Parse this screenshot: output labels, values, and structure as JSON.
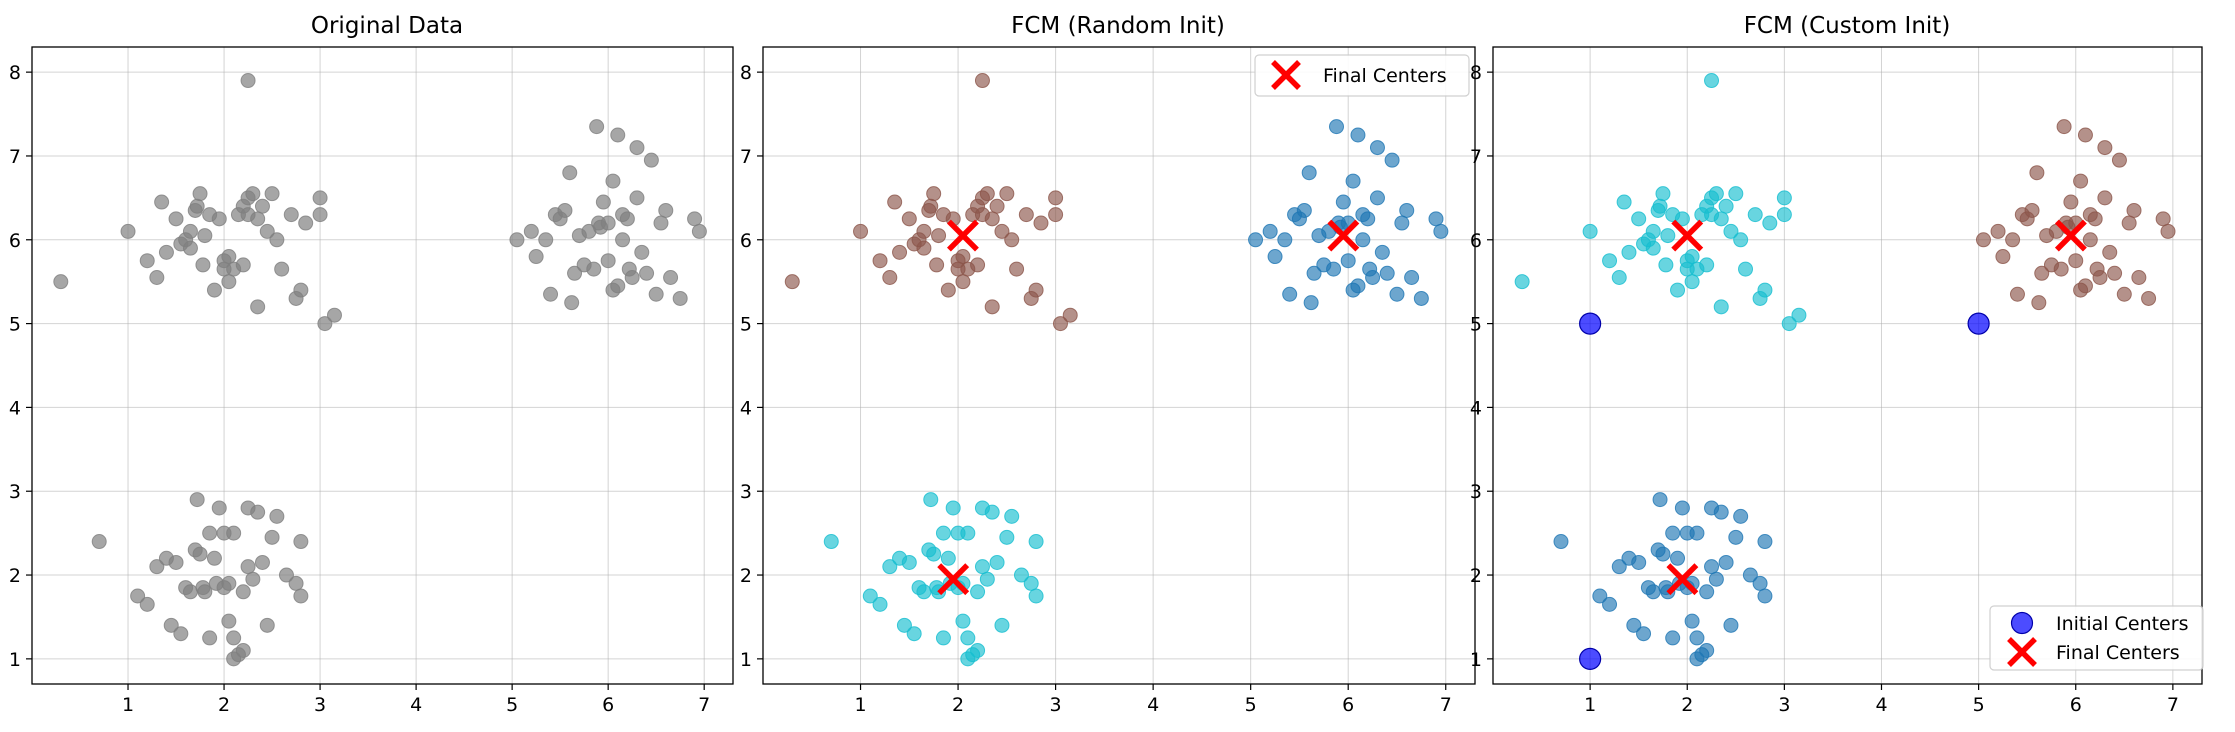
{
  "chart_data": [
    {
      "type": "scatter",
      "title": "Original Data",
      "xlabel": "",
      "ylabel": "",
      "xlim": [
        0.0,
        7.3
      ],
      "ylim": [
        0.7,
        8.3
      ],
      "xticks": [
        1,
        2,
        3,
        4,
        5,
        6,
        7
      ],
      "yticks": [
        1,
        2,
        3,
        4,
        5,
        6,
        7,
        8
      ],
      "grid": true,
      "legend": null,
      "series": [
        {
          "color": "#808080",
          "points": [
            [
              0.3,
              5.5
            ],
            [
              1.0,
              6.1
            ],
            [
              1.2,
              5.75
            ],
            [
              1.3,
              5.55
            ],
            [
              1.35,
              6.45
            ],
            [
              1.4,
              5.85
            ],
            [
              1.5,
              6.25
            ],
            [
              1.55,
              5.95
            ],
            [
              1.6,
              6.0
            ],
            [
              1.65,
              5.9
            ],
            [
              1.65,
              6.1
            ],
            [
              1.7,
              6.35
            ],
            [
              1.72,
              6.4
            ],
            [
              1.75,
              6.55
            ],
            [
              1.8,
              6.05
            ],
            [
              1.78,
              5.7
            ],
            [
              1.85,
              6.3
            ],
            [
              1.9,
              5.4
            ],
            [
              1.95,
              6.25
            ],
            [
              2.0,
              5.75
            ],
            [
              2.0,
              5.65
            ],
            [
              2.05,
              5.5
            ],
            [
              2.05,
              5.8
            ],
            [
              2.1,
              5.65
            ],
            [
              2.15,
              6.3
            ],
            [
              2.2,
              5.7
            ],
            [
              2.2,
              6.4
            ],
            [
              2.25,
              6.5
            ],
            [
              2.25,
              6.3
            ],
            [
              2.3,
              6.55
            ],
            [
              2.35,
              5.2
            ],
            [
              2.35,
              6.25
            ],
            [
              2.4,
              6.4
            ],
            [
              2.45,
              6.1
            ],
            [
              2.5,
              6.55
            ],
            [
              2.55,
              6.0
            ],
            [
              2.6,
              5.65
            ],
            [
              2.7,
              6.3
            ],
            [
              2.75,
              5.3
            ],
            [
              2.8,
              5.4
            ],
            [
              2.85,
              6.2
            ],
            [
              3.0,
              6.5
            ],
            [
              3.0,
              6.3
            ],
            [
              3.05,
              5.0
            ],
            [
              3.15,
              5.1
            ],
            [
              2.25,
              7.9
            ],
            [
              0.7,
              2.4
            ],
            [
              1.1,
              1.75
            ],
            [
              1.2,
              1.65
            ],
            [
              1.3,
              2.1
            ],
            [
              1.4,
              2.2
            ],
            [
              1.45,
              1.4
            ],
            [
              1.5,
              2.15
            ],
            [
              1.55,
              1.3
            ],
            [
              1.6,
              1.85
            ],
            [
              1.65,
              1.8
            ],
            [
              1.7,
              2.3
            ],
            [
              1.72,
              2.9
            ],
            [
              1.75,
              2.25
            ],
            [
              1.78,
              1.85
            ],
            [
              1.8,
              1.8
            ],
            [
              1.85,
              2.5
            ],
            [
              1.85,
              1.25
            ],
            [
              1.9,
              2.2
            ],
            [
              1.92,
              1.9
            ],
            [
              1.95,
              2.8
            ],
            [
              2.0,
              2.5
            ],
            [
              2.0,
              1.85
            ],
            [
              2.05,
              1.45
            ],
            [
              2.05,
              1.9
            ],
            [
              2.1,
              1.25
            ],
            [
              2.1,
              2.5
            ],
            [
              2.1,
              1.0
            ],
            [
              2.15,
              1.05
            ],
            [
              2.2,
              1.8
            ],
            [
              2.2,
              1.1
            ],
            [
              2.25,
              2.1
            ],
            [
              2.25,
              2.8
            ],
            [
              2.3,
              1.95
            ],
            [
              2.35,
              2.75
            ],
            [
              2.4,
              2.15
            ],
            [
              2.45,
              1.4
            ],
            [
              2.5,
              2.45
            ],
            [
              2.55,
              2.7
            ],
            [
              2.65,
              2.0
            ],
            [
              2.75,
              1.9
            ],
            [
              2.8,
              1.75
            ],
            [
              2.8,
              2.4
            ],
            [
              5.05,
              6.0
            ],
            [
              5.2,
              6.1
            ],
            [
              5.25,
              5.8
            ],
            [
              5.35,
              6.0
            ],
            [
              5.4,
              5.35
            ],
            [
              5.45,
              6.3
            ],
            [
              5.5,
              6.25
            ],
            [
              5.55,
              6.35
            ],
            [
              5.6,
              6.8
            ],
            [
              5.62,
              5.25
            ],
            [
              5.65,
              5.6
            ],
            [
              5.7,
              6.05
            ],
            [
              5.75,
              5.7
            ],
            [
              5.8,
              6.1
            ],
            [
              5.85,
              5.65
            ],
            [
              5.88,
              7.35
            ],
            [
              5.9,
              6.2
            ],
            [
              5.92,
              6.15
            ],
            [
              5.95,
              6.45
            ],
            [
              6.0,
              6.2
            ],
            [
              6.0,
              5.75
            ],
            [
              6.05,
              5.4
            ],
            [
              6.05,
              6.7
            ],
            [
              6.1,
              5.45
            ],
            [
              6.1,
              7.25
            ],
            [
              6.15,
              6.0
            ],
            [
              6.15,
              6.3
            ],
            [
              6.2,
              6.25
            ],
            [
              6.22,
              5.65
            ],
            [
              6.25,
              5.55
            ],
            [
              6.3,
              6.5
            ],
            [
              6.3,
              7.1
            ],
            [
              6.35,
              5.85
            ],
            [
              6.4,
              5.6
            ],
            [
              6.45,
              6.95
            ],
            [
              6.5,
              5.35
            ],
            [
              6.55,
              6.2
            ],
            [
              6.6,
              6.35
            ],
            [
              6.65,
              5.55
            ],
            [
              6.75,
              5.3
            ],
            [
              6.9,
              6.25
            ],
            [
              6.95,
              6.1
            ]
          ]
        }
      ]
    },
    {
      "type": "scatter",
      "title": "FCM (Random Init)",
      "xlabel": "",
      "ylabel": "",
      "xlim": [
        0.0,
        7.3
      ],
      "ylim": [
        0.7,
        8.3
      ],
      "xticks": [
        1,
        2,
        3,
        4,
        5,
        6,
        7
      ],
      "yticks": [
        1,
        2,
        3,
        4,
        5,
        6,
        7,
        8
      ],
      "grid": true,
      "legend": {
        "location": "upper right",
        "entries": [
          "Final Centers"
        ]
      },
      "series": [
        {
          "color": "#8c564b",
          "cluster": "top-left"
        },
        {
          "color": "#1f77b4",
          "cluster": "top-right"
        },
        {
          "color": "#17becf",
          "cluster": "bottom-left"
        }
      ],
      "final_centers": [
        [
          2.05,
          6.05
        ],
        [
          5.95,
          6.05
        ],
        [
          1.95,
          1.95
        ]
      ],
      "final_center_color": "#ff0000"
    },
    {
      "type": "scatter",
      "title": "FCM (Custom Init)",
      "xlabel": "",
      "ylabel": "",
      "xlim": [
        0.0,
        7.3
      ],
      "ylim": [
        0.7,
        8.3
      ],
      "xticks": [
        1,
        2,
        3,
        4,
        5,
        6,
        7
      ],
      "yticks": [
        1,
        2,
        3,
        4,
        5,
        6,
        7,
        8
      ],
      "grid": true,
      "legend": {
        "location": "lower right",
        "entries": [
          "Initial Centers",
          "Final Centers"
        ]
      },
      "series": [
        {
          "color": "#17becf",
          "cluster": "top-left"
        },
        {
          "color": "#8c564b",
          "cluster": "top-right"
        },
        {
          "color": "#1f77b4",
          "cluster": "bottom-left"
        }
      ],
      "initial_centers": [
        [
          1.0,
          1.0
        ],
        [
          1.0,
          5.0
        ],
        [
          5.0,
          5.0
        ]
      ],
      "initial_center_color": "#0000ff",
      "final_centers": [
        [
          2.0,
          6.05
        ],
        [
          5.95,
          6.05
        ],
        [
          1.95,
          1.95
        ]
      ],
      "final_center_color": "#ff0000"
    }
  ]
}
